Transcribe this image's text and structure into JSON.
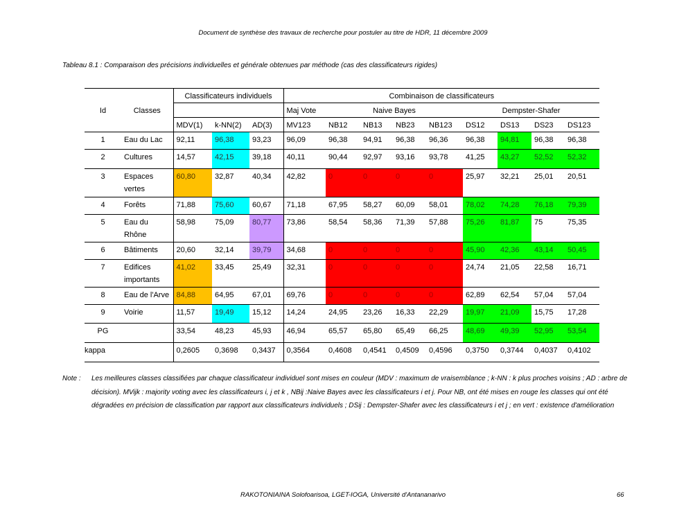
{
  "header": "Document de synthèse des travaux de recherche pour postuler au titre de HDR, 11 décembre 2009",
  "caption": "Tableau 8.1 : Comparaison des précisions individuelles et générale obtenues par méthode (cas des classificateurs rigides)",
  "table": {
    "col_id": "Id",
    "col_classes": "Classes",
    "group_individual": "Classificateurs individuels",
    "group_combination": "Combinaison de classificateurs",
    "sub_majvote": "Maj Vote",
    "sub_naivebayes": "Naive Bayes",
    "sub_dempster": "Dempster-Shafer",
    "columns": [
      "MDV(1)",
      "k-NN(2)",
      "AD(3)",
      "MV123",
      "NB12",
      "NB13",
      "NB23",
      "NB123",
      "DS12",
      "DS13",
      "DS23",
      "DS123"
    ],
    "palette": {
      "c": "#00ffff",
      "o": "#ffc000",
      "p": "#cc99ff",
      "r": "#ff0000",
      "g": "#00ff00"
    },
    "rows": [
      {
        "id": "1",
        "cls": "Eau du Lac",
        "values": [
          "92,11",
          "96,38",
          "93,23",
          "96,09",
          "96,38",
          "94,91",
          "96,38",
          "96,36",
          "96,38",
          "94,81",
          "96,38",
          "96,38"
        ],
        "colors": [
          "",
          "c",
          "",
          "",
          "",
          "",
          "",
          "",
          "",
          "g",
          "",
          ""
        ]
      },
      {
        "id": "2",
        "cls": "Cultures",
        "values": [
          "14,57",
          "42,15",
          "39,18",
          "40,11",
          "90,44",
          "92,97",
          "93,16",
          "93,78",
          "41,25",
          "43,27",
          "52,52",
          "52,32"
        ],
        "colors": [
          "",
          "c",
          "",
          "",
          "",
          "",
          "",
          "",
          "",
          "g",
          "g",
          "g"
        ]
      },
      {
        "id": "3",
        "cls": "Espaces vertes",
        "values": [
          "60,80",
          "32,87",
          "40,34",
          "42,82",
          "0",
          "0",
          "0",
          "0",
          "25,97",
          "32,21",
          "25,01",
          "20,51"
        ],
        "colors": [
          "o",
          "",
          "",
          "",
          "r",
          "r",
          "r",
          "r",
          "",
          "",
          "",
          ""
        ]
      },
      {
        "id": "4",
        "cls": "Forêts",
        "values": [
          "71,88",
          "75,60",
          "60,67",
          "71,18",
          "67,95",
          "58,27",
          "60,09",
          "58,01",
          "78,02",
          "74,28",
          "76,18",
          "79,39"
        ],
        "colors": [
          "",
          "c",
          "",
          "",
          "",
          "",
          "",
          "",
          "g",
          "g",
          "g",
          "g"
        ]
      },
      {
        "id": "5",
        "cls": "Eau du Rhône",
        "values": [
          "58,98",
          "75,09",
          "80,77",
          "73,86",
          "58,54",
          "58,36",
          "71,39",
          "57,88",
          "75,26",
          "81,87",
          "75",
          "75,35"
        ],
        "colors": [
          "",
          "",
          "p",
          "",
          "",
          "",
          "",
          "",
          "g",
          "g",
          "",
          ""
        ]
      },
      {
        "id": "6",
        "cls": "Bâtiments",
        "values": [
          "20,60",
          "32,14",
          "39,79",
          "34,68",
          "0",
          "0",
          "0",
          "0",
          "45,90",
          "42,36",
          "43,14",
          "50,45"
        ],
        "colors": [
          "",
          "",
          "p",
          "",
          "r",
          "r",
          "r",
          "r",
          "g",
          "g",
          "g",
          "g"
        ]
      },
      {
        "id": "7",
        "cls": "Edifices importants",
        "values": [
          "41,02",
          "33,45",
          "25,49",
          "32,31",
          "0",
          "0",
          "0",
          "0",
          "24,74",
          "21,05",
          "22,58",
          "16,71"
        ],
        "colors": [
          "o",
          "",
          "",
          "",
          "r",
          "r",
          "r",
          "r",
          "",
          "",
          "",
          ""
        ]
      },
      {
        "id": "8",
        "cls": "Eau de l'Arve",
        "values": [
          "84,88",
          "64,95",
          "67,01",
          "69,76",
          "0",
          "0",
          "0",
          "0",
          "62,89",
          "62,54",
          "57,04",
          "57,04"
        ],
        "colors": [
          "o",
          "",
          "",
          "",
          "r",
          "r",
          "r",
          "r",
          "",
          "",
          "",
          ""
        ]
      },
      {
        "id": "9",
        "cls": "Voirie",
        "values": [
          "11,57",
          "19,49",
          "15,12",
          "14,24",
          "24,95",
          "23,26",
          "16,33",
          "22,29",
          "19,97",
          "21,09",
          "15,75",
          "17,28"
        ],
        "colors": [
          "",
          "c",
          "",
          "",
          "",
          "",
          "",
          "",
          "g",
          "g",
          "",
          ""
        ]
      },
      {
        "id": "PG",
        "cls": "",
        "values": [
          "33,54",
          "48,23",
          "45,93",
          "46,94",
          "65,57",
          "65,80",
          "65,49",
          "66,25",
          "48,69",
          "49,39",
          "52,95",
          "53,54"
        ],
        "colors": [
          "",
          "",
          "",
          "",
          "",
          "",
          "",
          "",
          "g",
          "g",
          "g",
          "g"
        ]
      },
      {
        "id": "kappa",
        "cls": "",
        "values": [
          "0,2605",
          "0,3698",
          "0,3437",
          "0,3564",
          "0,4608",
          "0,4541",
          "0,4509",
          "0,4596",
          "0,3750",
          "0,3744",
          "0,4037",
          "0,4102"
        ],
        "colors": [
          "",
          "",
          "",
          "",
          "",
          "",
          "",
          "",
          "",
          "",
          "",
          ""
        ]
      }
    ]
  },
  "note": {
    "label": "Note :",
    "text": "Les meilleures classes classifiées par chaque classificateur individuel sont mises en couleur (MDV : maximum de vraisemblance ; k-NN : k plus proches voisins ; AD : arbre de décision). MVijk : majority voting avec les classificateurs i, j et k , NBij :Naive Bayes avec les classificateurs i et j. Pour NB, ont été mises en rouge les classes qui ont été dégradées en précision de classification par rapport aux classificateurs individuels ; DSij : Dempster-Shafer avec les classificateurs i et j ; en vert : existence d'amélioration"
  },
  "footer": "RAKOTONIAINA Solofoarisoa, LGET-IOGA, Université d'Antananarivo",
  "page_number": "66"
}
